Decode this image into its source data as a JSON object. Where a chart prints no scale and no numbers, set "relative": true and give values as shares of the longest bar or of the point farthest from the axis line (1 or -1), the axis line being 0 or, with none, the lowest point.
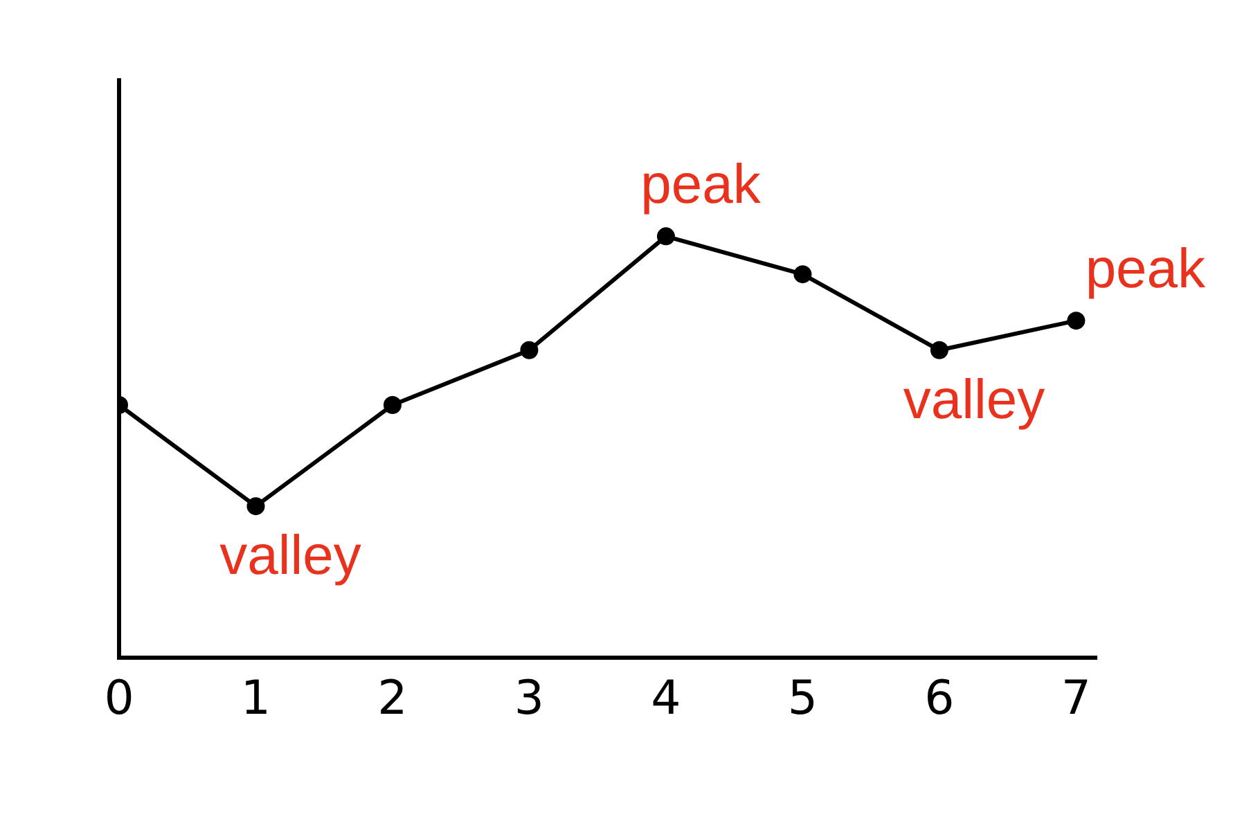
{
  "chart_data": {
    "type": "line",
    "relative": true,
    "x": [
      0,
      1,
      2,
      3,
      4,
      5,
      6,
      7
    ],
    "series": [
      {
        "color": "#000000",
        "values": [
          0.6,
          0.36,
          0.6,
          0.73,
          1,
          0.91,
          0.73,
          0.8
        ]
      }
    ],
    "xlim": [
      0,
      7.15
    ],
    "xticks": [
      0,
      1,
      2,
      3,
      4,
      5,
      6,
      7
    ],
    "marker": "circle",
    "line_style": "solid",
    "grid": false,
    "legend": false,
    "annotations": [
      {
        "text": "peak",
        "x": 4,
        "y": 1
      },
      {
        "text": "peak",
        "x": 7,
        "y": 0.8
      },
      {
        "text": "valley",
        "x": 1,
        "y": 0.36
      },
      {
        "text": "valley",
        "x": 6,
        "y": 0.73
      }
    ]
  }
}
